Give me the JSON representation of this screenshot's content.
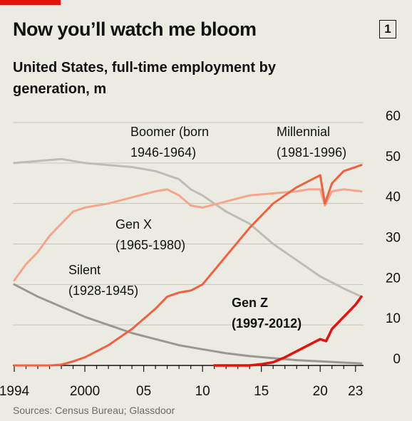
{
  "header": {
    "title": "Now you’ll watch me bloom",
    "badge": "1",
    "subtitle": "United States, full-time employment by generation, m"
  },
  "footer": {
    "source": "Sources: Census Bureau; Glassdoor"
  },
  "colors": {
    "brand_red": "#e3120b",
    "gen_z": "#e3120b",
    "millennial": "#f0623f",
    "gen_x": "#f5a58a",
    "boomer": "#bfbdb3",
    "silent": "#9a9890"
  },
  "chart_data": {
    "type": "line",
    "title": "Now you’ll watch me bloom",
    "subtitle": "United States, full-time employment by generation, m",
    "xlim": [
      1994,
      2023.5
    ],
    "ylim": [
      0,
      60
    ],
    "x_ticks": [
      1994,
      2000,
      2005,
      2010,
      2015,
      2020,
      2023
    ],
    "x_tick_labels": [
      "1994",
      "2000",
      "05",
      "10",
      "15",
      "20",
      "23"
    ],
    "y_ticks": [
      0,
      10,
      20,
      30,
      40,
      50,
      60
    ],
    "y_tick_labels": [
      "0",
      "10",
      "20",
      "30",
      "40",
      "50",
      "60"
    ],
    "grid": true,
    "series": [
      {
        "name": "Silent (1928-1945)",
        "label_lines": [
          "Silent",
          "(1928-1945)"
        ],
        "x": [
          1994,
          1996,
          1998,
          2000,
          2002,
          2004,
          2006,
          2008,
          2010,
          2012,
          2014,
          2016,
          2018,
          2020,
          2022,
          2023.5
        ],
        "y": [
          20,
          17,
          14.5,
          12,
          10,
          8,
          6.5,
          5,
          4,
          3,
          2.3,
          1.8,
          1.3,
          1,
          0.7,
          0.5
        ]
      },
      {
        "name": "Boomer (born 1946-1964)",
        "label_lines": [
          "Boomer (born",
          "1946-1964)"
        ],
        "x": [
          1994,
          1996,
          1998,
          2000,
          2002,
          2004,
          2006,
          2008,
          2009,
          2010,
          2012,
          2014,
          2016,
          2018,
          2020,
          2022,
          2023.5
        ],
        "y": [
          50,
          50.5,
          51,
          50,
          49.5,
          49,
          48,
          46,
          43.5,
          42,
          38,
          35,
          30,
          26,
          22,
          19,
          17
        ]
      },
      {
        "name": "Gen X (1965-1980)",
        "label_lines": [
          "Gen X",
          "(1965-1980)"
        ],
        "x": [
          1994,
          1995,
          1996,
          1997,
          1998,
          1999,
          2000,
          2002,
          2004,
          2006,
          2007,
          2008,
          2009,
          2010,
          2012,
          2014,
          2016,
          2018,
          2019,
          2020,
          2020.4,
          2021,
          2022,
          2023.5
        ],
        "y": [
          21,
          25,
          28,
          32,
          35,
          38,
          39,
          40,
          41.5,
          43,
          43.5,
          42,
          39.5,
          39,
          40.5,
          42,
          42.5,
          43,
          43.5,
          43.5,
          39.5,
          43,
          43.5,
          43
        ]
      },
      {
        "name": "Millennial (1981-1996)",
        "label_lines": [
          "Millennial",
          "(1981-1996)"
        ],
        "x": [
          1994,
          1997,
          1998,
          1999,
          2000,
          2002,
          2004,
          2006,
          2007,
          2008,
          2009,
          2010,
          2012,
          2014,
          2016,
          2018,
          2019,
          2020,
          2020.4,
          2021,
          2022,
          2023.5
        ],
        "y": [
          0,
          0,
          0.2,
          1,
          2,
          5,
          9,
          14,
          17,
          18,
          18.5,
          20,
          27,
          34,
          40,
          44,
          45.5,
          47,
          40,
          45,
          48,
          49.5
        ]
      },
      {
        "name": "Gen Z (1997-2012)",
        "label_lines": [
          "Gen Z",
          "(1997-2012)"
        ],
        "x": [
          2011,
          2012,
          2013,
          2014,
          2015,
          2016,
          2017,
          2018,
          2019,
          2020,
          2020.5,
          2021,
          2022,
          2023,
          2023.5
        ],
        "y": [
          0,
          0,
          0,
          0,
          0.3,
          0.8,
          2,
          3.5,
          5,
          6.5,
          6,
          9,
          12,
          15,
          17
        ]
      }
    ]
  }
}
